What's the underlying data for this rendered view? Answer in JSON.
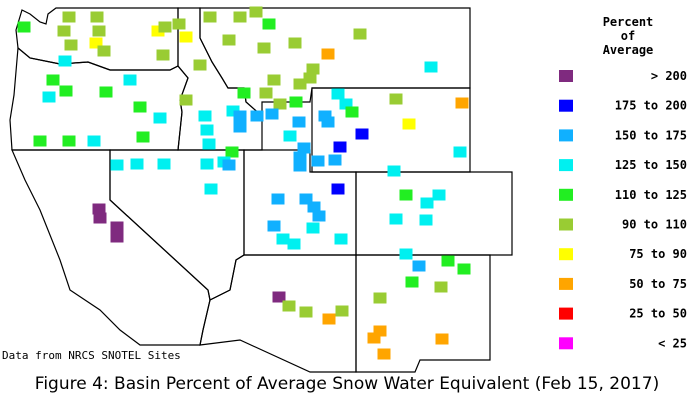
{
  "legend": {
    "title_lines": [
      "Percent",
      "of",
      "Average"
    ],
    "categories": [
      {
        "label": "> 200",
        "color": "#7f2a7f"
      },
      {
        "label": "175 to 200",
        "color": "#0000ff"
      },
      {
        "label": "150 to 175",
        "color": "#10b0ff"
      },
      {
        "label": "125 to 150",
        "color": "#00f0f0"
      },
      {
        "label": "110 to 125",
        "color": "#22ee22"
      },
      {
        "label": "90 to 110",
        "color": "#99cc33"
      },
      {
        "label": "75 to 90",
        "color": "#ffff00"
      },
      {
        "label": "50 to 75",
        "color": "#ffa500"
      },
      {
        "label": "25 to 50",
        "color": "#ff0000"
      },
      {
        "label": "< 25",
        "color": "#ff00ff"
      }
    ]
  },
  "source_note": "Data from NRCS SNOTEL Sites",
  "caption": "Figure 4: Basin Percent of Average Snow Water Equivalent (Feb 15, 2017)"
}
